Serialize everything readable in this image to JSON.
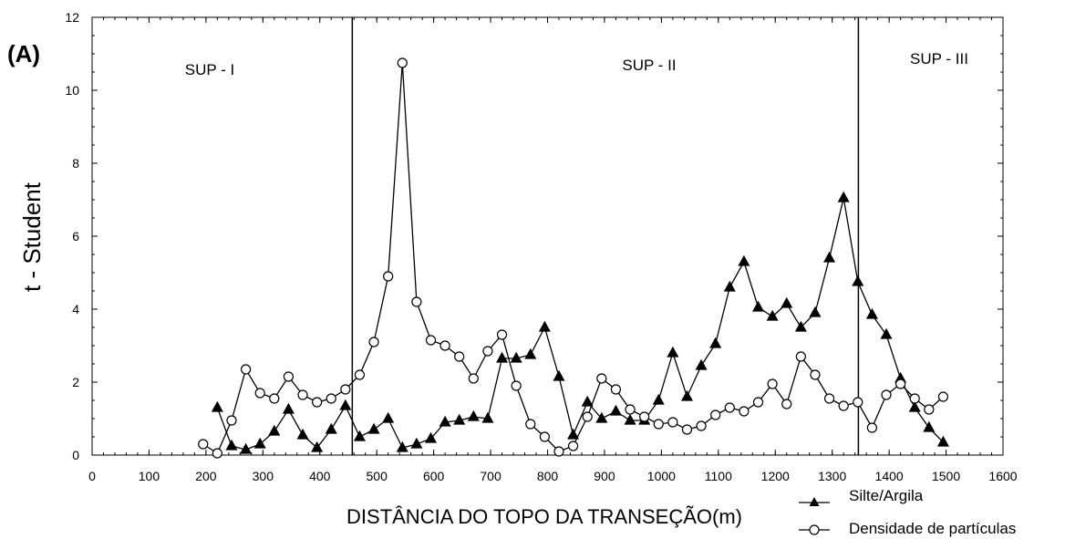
{
  "chart_data": {
    "type": "line",
    "panel_label": "(A)",
    "xlabel": "DISTÂNCIA DO TOPO DA TRANSEÇÃO(m)",
    "ylabel": "t - Student",
    "regions": [
      "SUP - I",
      "SUP - II",
      "SUP - III"
    ],
    "region_dividers": [
      457,
      1346
    ],
    "x": [
      195,
      220,
      245,
      270,
      295,
      320,
      345,
      370,
      395,
      420,
      445,
      470,
      495,
      520,
      545,
      570,
      595,
      620,
      645,
      670,
      695,
      720,
      745,
      770,
      795,
      820,
      845,
      870,
      895,
      920,
      945,
      970,
      995,
      1020,
      1045,
      1070,
      1095,
      1120,
      1145,
      1170,
      1195,
      1220,
      1245,
      1270,
      1295,
      1320,
      1345,
      1370,
      1395,
      1420,
      1445,
      1470,
      1495
    ],
    "series": [
      {
        "name": "Silte/Argila",
        "marker": "triangle",
        "color": "#000000",
        "values": [
          null,
          1.3,
          0.25,
          0.15,
          0.3,
          0.65,
          1.25,
          0.55,
          0.2,
          0.7,
          1.35,
          0.5,
          0.7,
          1.0,
          0.2,
          0.3,
          0.45,
          0.9,
          0.95,
          1.05,
          1.0,
          2.65,
          2.65,
          2.75,
          3.5,
          2.15,
          0.55,
          1.45,
          1.0,
          1.2,
          0.95,
          0.95,
          1.5,
          2.8,
          1.6,
          2.45,
          3.05,
          4.6,
          5.3,
          4.05,
          3.8,
          4.15,
          3.5,
          3.9,
          5.4,
          7.05,
          4.75,
          3.85,
          3.3,
          2.1,
          1.3,
          0.75,
          0.35
        ]
      },
      {
        "name": "Densidade de partículas",
        "marker": "circle",
        "color": "#000000",
        "values": [
          0.3,
          0.05,
          0.95,
          2.35,
          1.7,
          1.55,
          2.15,
          1.65,
          1.45,
          1.55,
          1.8,
          2.2,
          3.1,
          4.9,
          10.75,
          4.2,
          3.15,
          3.0,
          2.7,
          2.1,
          2.85,
          3.3,
          1.9,
          0.85,
          0.5,
          0.1,
          0.25,
          1.05,
          2.1,
          1.8,
          1.25,
          1.05,
          0.85,
          0.9,
          0.7,
          0.8,
          1.1,
          1.3,
          1.2,
          1.45,
          1.95,
          1.4,
          2.7,
          2.2,
          1.55,
          1.35,
          1.45,
          0.75,
          1.65,
          1.95,
          1.55,
          1.25,
          1.6
        ]
      }
    ],
    "xlim": [
      0,
      1600
    ],
    "xticks": [
      0,
      100,
      200,
      300,
      400,
      500,
      600,
      700,
      800,
      900,
      1000,
      1100,
      1200,
      1300,
      1400,
      1500,
      1600
    ],
    "ylim": [
      0,
      12
    ],
    "yticks": [
      0,
      2,
      4,
      6,
      8,
      10,
      12
    ]
  }
}
